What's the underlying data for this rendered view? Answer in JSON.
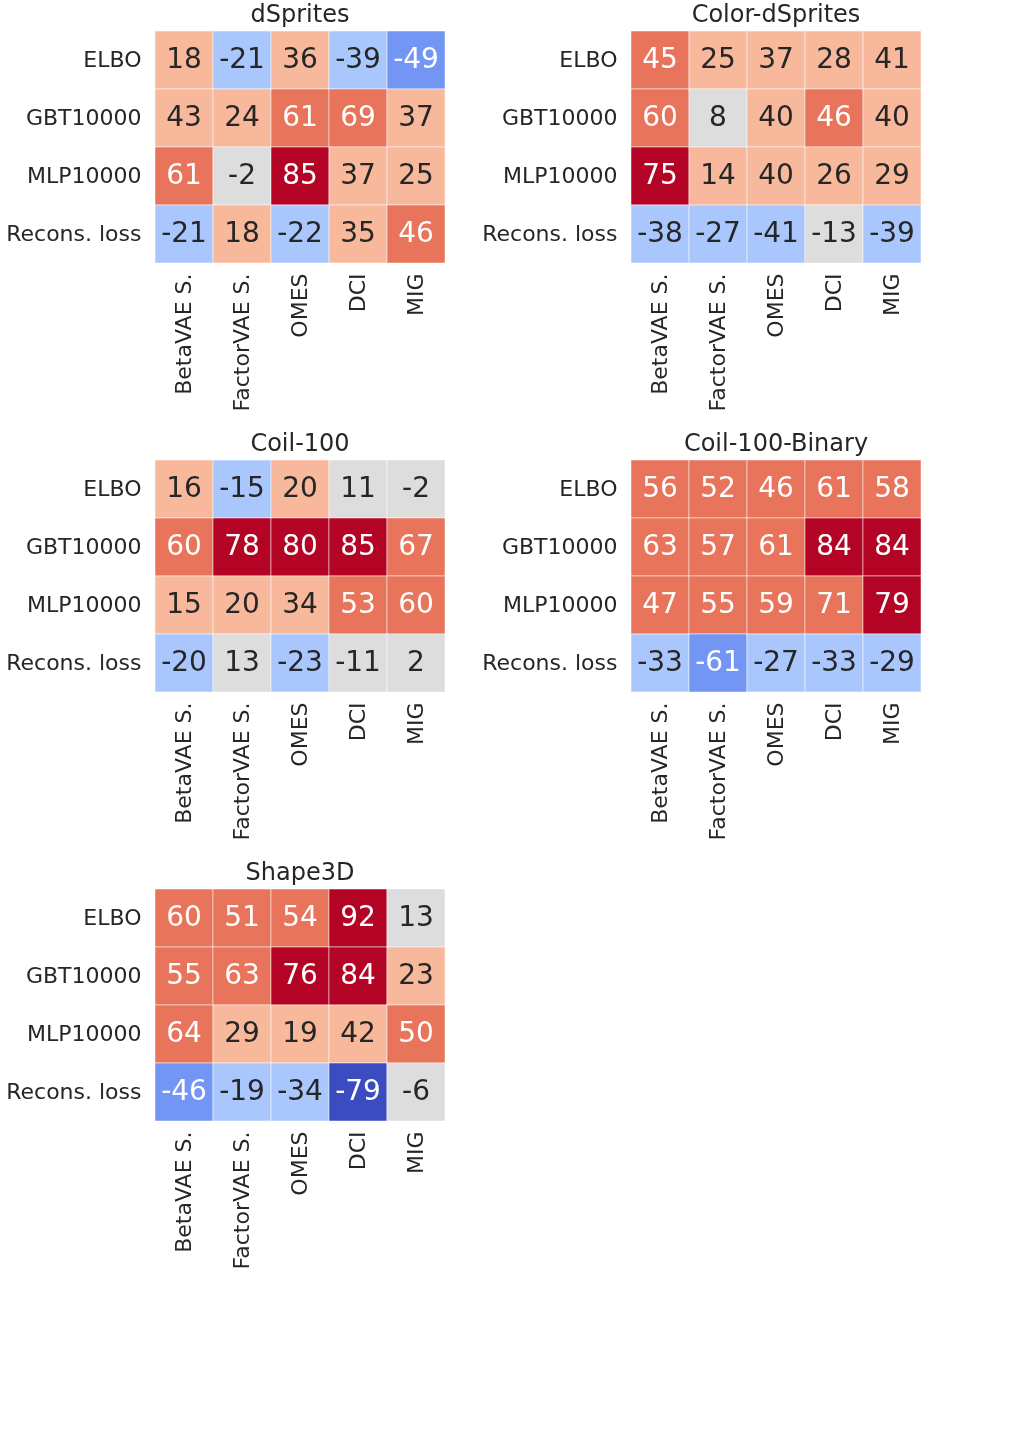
{
  "chart_data": [
    {
      "type": "heatmap",
      "title": "dSprites",
      "categories": [
        "BetaVAE S.",
        "FactorVAE S.",
        "OMES",
        "DCI",
        "MIG"
      ],
      "y_categories": [
        "ELBO",
        "GBT10000",
        "MLP10000",
        "Recons. loss"
      ],
      "data_labels": true,
      "cells": [
        [
          18,
          -21,
          36,
          -39,
          -49
        ],
        [
          43,
          24,
          61,
          69,
          37
        ],
        [
          61,
          -2,
          85,
          37,
          25
        ],
        [
          -21,
          18,
          -22,
          35,
          46
        ]
      ]
    },
    {
      "type": "heatmap",
      "title": "Color-dSprites",
      "categories": [
        "BetaVAE S.",
        "FactorVAE S.",
        "OMES",
        "DCI",
        "MIG"
      ],
      "y_categories": [
        "ELBO",
        "GBT10000",
        "MLP10000",
        "Recons. loss"
      ],
      "data_labels": true,
      "cells": [
        [
          45,
          25,
          37,
          28,
          41
        ],
        [
          60,
          8,
          40,
          46,
          40
        ],
        [
          75,
          14,
          40,
          26,
          29
        ],
        [
          -38,
          -27,
          -41,
          -13,
          -39
        ]
      ]
    },
    {
      "type": "heatmap",
      "title": "Coil-100",
      "categories": [
        "BetaVAE S.",
        "FactorVAE S.",
        "OMES",
        "DCI",
        "MIG"
      ],
      "y_categories": [
        "ELBO",
        "GBT10000",
        "MLP10000",
        "Recons. loss"
      ],
      "data_labels": true,
      "cells": [
        [
          16,
          -15,
          20,
          11,
          -2
        ],
        [
          60,
          78,
          80,
          85,
          67
        ],
        [
          15,
          20,
          34,
          53,
          60
        ],
        [
          -20,
          13,
          -23,
          -11,
          2
        ]
      ]
    },
    {
      "type": "heatmap",
      "title": "Coil-100-Binary",
      "categories": [
        "BetaVAE S.",
        "FactorVAE S.",
        "OMES",
        "DCI",
        "MIG"
      ],
      "y_categories": [
        "ELBO",
        "GBT10000",
        "MLP10000",
        "Recons. loss"
      ],
      "data_labels": true,
      "cells": [
        [
          56,
          52,
          46,
          61,
          58
        ],
        [
          63,
          57,
          61,
          84,
          84
        ],
        [
          47,
          55,
          59,
          71,
          79
        ],
        [
          -33,
          -61,
          -27,
          -33,
          -29
        ]
      ]
    },
    {
      "type": "heatmap",
      "title": "Shape3D",
      "categories": [
        "BetaVAE S.",
        "FactorVAE S.",
        "OMES",
        "DCI",
        "MIG"
      ],
      "y_categories": [
        "ELBO",
        "GBT10000",
        "MLP10000",
        "Recons. loss"
      ],
      "data_labels": true,
      "cells": [
        [
          60,
          51,
          54,
          92,
          13
        ],
        [
          55,
          63,
          76,
          84,
          23
        ],
        [
          64,
          29,
          19,
          42,
          50
        ],
        [
          -46,
          -19,
          -34,
          -79,
          -6
        ]
      ]
    }
  ]
}
